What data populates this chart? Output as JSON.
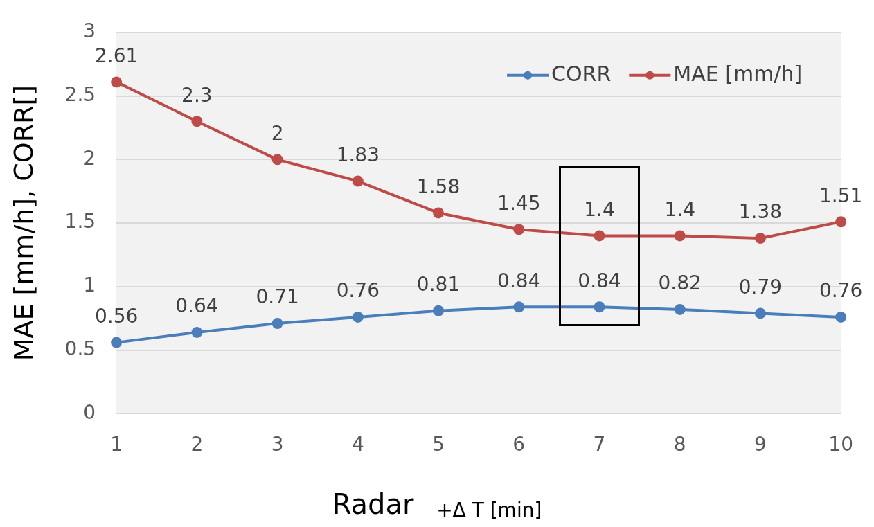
{
  "chart_data": {
    "type": "line",
    "xlabel": "Radar $_{+Δ T [min]}$",
    "ylabel": "MAE [mm/h], CORR[]",
    "categories": [
      "1",
      "2",
      "3",
      "4",
      "5",
      "6",
      "7",
      "8",
      "9",
      "10"
    ],
    "series": [
      {
        "name": "CORR",
        "color": "#4a7ebb",
        "values": [
          0.56,
          0.64,
          0.71,
          0.76,
          0.81,
          0.84,
          0.84,
          0.82,
          0.79,
          0.76
        ]
      },
      {
        "name": "MAE [mm/h]",
        "color": "#be4b48",
        "values": [
          2.61,
          2.3,
          2,
          1.83,
          1.58,
          1.45,
          1.4,
          1.4,
          1.38,
          1.51
        ]
      }
    ],
    "ylim": [
      0,
      3
    ],
    "yticks": [
      0,
      0.5,
      1,
      1.5,
      2,
      2.5,
      3
    ],
    "grid": "y",
    "legend": "top right",
    "marker": "circle",
    "line_style": "solid",
    "data_labels": true
  }
}
